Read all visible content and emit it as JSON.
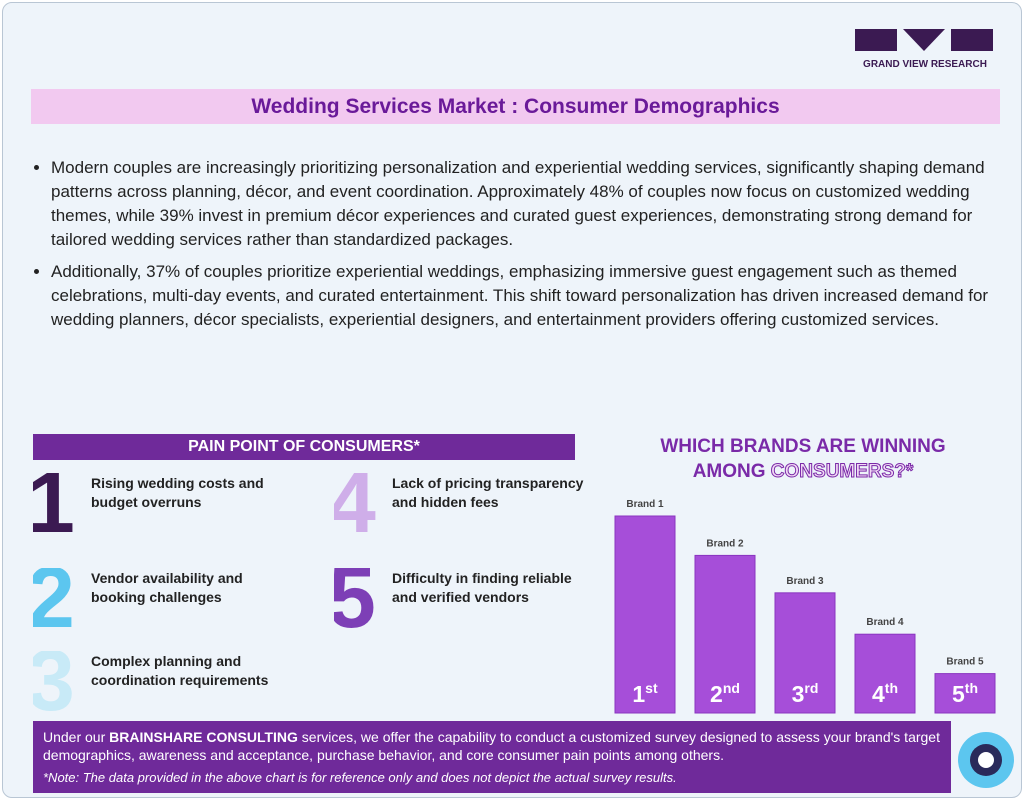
{
  "header": {
    "logo_text": "GRAND VIEW RESEARCH",
    "title": "Wedding Services Market : Consumer Demographics"
  },
  "bullets": [
    "Modern couples are increasingly prioritizing personalization and experiential wedding services, significantly shaping demand patterns across planning, décor, and event coordination. Approximately 48% of couples now focus on customized wedding themes, while 39% invest in premium décor experiences and curated guest experiences, demonstrating strong demand for tailored wedding services rather than standardized packages.",
    "Additionally, 37% of couples prioritize experiential weddings, emphasizing immersive guest engagement such as themed celebrations, multi-day events, and curated entertainment. This shift toward personalization has driven increased demand for wedding planners, décor specialists, experiential designers, and entertainment providers offering customized services."
  ],
  "pain_points": {
    "title": "PAIN POINT OF CONSUMERS*",
    "items": [
      {
        "number": "1",
        "text": "Rising wedding costs and budget overruns",
        "color": "#3b1a52"
      },
      {
        "number": "2",
        "text": "Vendor availability and booking challenges",
        "color": "#5cc6ef"
      },
      {
        "number": "3",
        "text": "Complex planning and coordination requirements",
        "color": "#c8eaf7"
      },
      {
        "number": "4",
        "text": "Lack of pricing transparency and hidden fees",
        "color": "#cfaee9"
      },
      {
        "number": "5",
        "text": "Difficulty in finding reliable and verified vendors",
        "color": "#7d3fb6"
      }
    ]
  },
  "chart_data": {
    "type": "bar",
    "title_parts": [
      "WHICH BRANDS ARE WINNING",
      "AMONG",
      "CONSUMERS?*"
    ],
    "categories": [
      "Brand 1",
      "Brand 2",
      "Brand 3",
      "Brand 4",
      "Brand 5"
    ],
    "rank_numbers": [
      "1",
      "2",
      "3",
      "4",
      "5"
    ],
    "rank_suffixes": [
      "st",
      "nd",
      "rd",
      "th",
      "th"
    ],
    "values": [
      100,
      80,
      61,
      40,
      20
    ],
    "color": "#a64ed9"
  },
  "footer": {
    "text_parts": [
      "Under our",
      "BRAINSHARE CONSULTING",
      "services, we offer the capability to conduct a customized survey designed to assess your brand's target demographics, awareness and acceptance, purchase behavior, and core consumer pain points among others."
    ],
    "note": "*Note: The data provided in the above chart is for reference only and does not depict the actual survey results."
  }
}
